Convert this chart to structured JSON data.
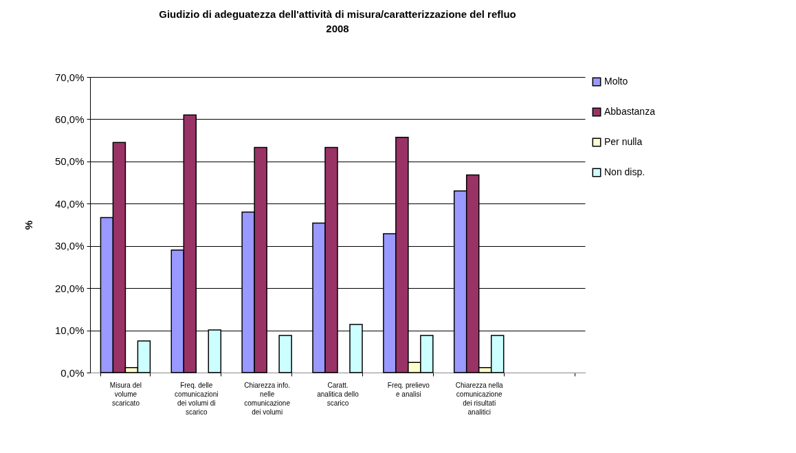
{
  "chart_data": {
    "type": "bar",
    "title": "Giudizio di adeguatezza dell'attività di misura/caratterizzazione del refluo",
    "subtitle": "2008",
    "ylabel": "%",
    "categories": [
      "Misura del volume scaricato",
      "Freq. delle comunicazioni dei volumi di scarico",
      "Chiarezza info. nelle comunicazione dei volumi",
      "Caratt. analitica dello scarico",
      "Freq. prelievo e analisi",
      "Chiarezza nella comunicazione dei risultati analitici",
      null
    ],
    "series": [
      {
        "name": "Molto",
        "color": "#9999ff",
        "values": [
          36.7,
          29.0,
          38.0,
          35.4,
          32.9,
          43.0,
          null
        ]
      },
      {
        "name": "Abbastanza",
        "color": "#993366",
        "values": [
          54.5,
          61.0,
          53.3,
          53.3,
          55.7,
          46.8,
          null
        ]
      },
      {
        "name": "Per nulla",
        "color": "#ffffcc",
        "values": [
          1.2,
          null,
          null,
          null,
          2.4,
          1.2,
          null
        ]
      },
      {
        "name": "Non disp.",
        "color": "#ccffff",
        "values": [
          7.5,
          10.1,
          8.8,
          11.4,
          8.8,
          8.8,
          null
        ]
      }
    ],
    "ylim": [
      0,
      70
    ],
    "yticks": [
      {
        "value": 0,
        "label": "0,0%"
      },
      {
        "value": 10,
        "label": "10,0%"
      },
      {
        "value": 20,
        "label": "20,0%"
      },
      {
        "value": 30,
        "label": "30,0%"
      },
      {
        "value": 40,
        "label": "40,0%"
      },
      {
        "value": 50,
        "label": "50,0%"
      },
      {
        "value": 60,
        "label": "60,0%"
      },
      {
        "value": 70,
        "label": "70,0%"
      }
    ],
    "grid": "y",
    "legend": "right"
  }
}
